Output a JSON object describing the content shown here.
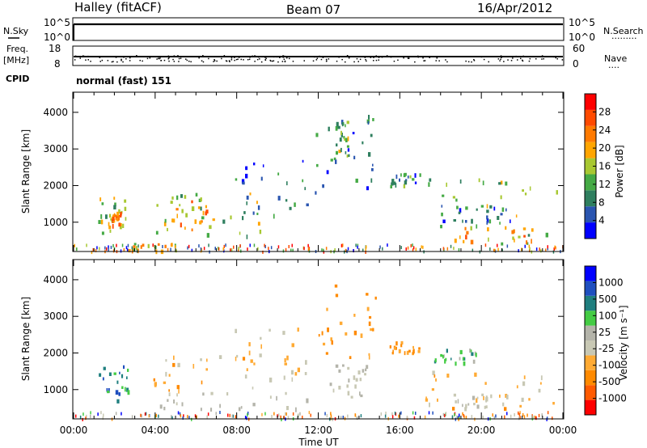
{
  "header": {
    "station": "Halley (fitACF)",
    "beam": "Beam 07",
    "date": "16/Apr/2012"
  },
  "noise_panel": {
    "left_label": "N.Sky",
    "right_label": "N.Search",
    "ticks": [
      "10^5",
      "10^0"
    ],
    "right_ticks": [
      "10^5",
      "10^0"
    ],
    "right_marker": "........."
  },
  "freq_panel": {
    "left_label": "Freq.",
    "left_unit": "[MHz]",
    "ticks": [
      "18",
      "8"
    ],
    "right_label": "Nave",
    "right_ticks": [
      "60",
      "0"
    ],
    "right_marker": "...."
  },
  "cpid": {
    "label": "CPID",
    "value": "normal (fast) 151"
  },
  "time_axis": {
    "label": "Time UT",
    "ticks": [
      "00:00",
      "04:00",
      "08:00",
      "12:00",
      "16:00",
      "20:00",
      "00:00"
    ]
  },
  "colors": {
    "power": [
      "#0000ff",
      "#2a55b0",
      "#2f7f5f",
      "#45aa45",
      "#a8c832",
      "#ffa500",
      "#ff7a00",
      "#ff4a00",
      "#ff0000"
    ],
    "velocity": [
      "#ff0000",
      "#ff5a00",
      "#ff8a00",
      "#ffaa33",
      "#c8c8b4",
      "#b4b4aa",
      "#44cc44",
      "#1f7f7f",
      "#1f4fbf",
      "#0000ff"
    ]
  },
  "chart_data": [
    {
      "type": "heatmap",
      "name": "power",
      "ylabel": "Slant Range [km]",
      "yticks": [
        1000,
        2000,
        3000,
        4000
      ],
      "ylim": [
        200,
        4550
      ],
      "xlim": [
        0,
        24
      ],
      "colorbar": {
        "label": "Power [dB]",
        "ticks": [
          "4",
          "8",
          "12",
          "16",
          "20",
          "24",
          "28"
        ],
        "range": [
          0,
          32
        ]
      },
      "regions": [
        {
          "t": [
            1.2,
            2.7
          ],
          "r": [
            700,
            1700
          ],
          "level": 14
        },
        {
          "t": [
            1.6,
            2.3
          ],
          "r": [
            900,
            1300
          ],
          "level": 22
        },
        {
          "t": [
            3.8,
            9.2
          ],
          "r": [
            650,
            1900
          ],
          "level": 14
        },
        {
          "t": [
            4.5,
            6.5
          ],
          "r": [
            800,
            1600
          ],
          "level": 21
        },
        {
          "t": [
            7.8,
            11.5
          ],
          "r": [
            1200,
            2700
          ],
          "level": 7
        },
        {
          "t": [
            11.8,
            14.8
          ],
          "r": [
            1800,
            4000
          ],
          "level": 8
        },
        {
          "t": [
            12.8,
            13.6
          ],
          "r": [
            2800,
            3800
          ],
          "level": 12
        },
        {
          "t": [
            15.5,
            17.0
          ],
          "r": [
            2000,
            2350
          ],
          "level": 9
        },
        {
          "t": [
            17.2,
            23.9
          ],
          "r": [
            350,
            2200
          ],
          "level": 13
        },
        {
          "t": [
            18.0,
            22.5
          ],
          "r": [
            500,
            1000
          ],
          "level": 21
        },
        {
          "t": [
            18.0,
            21.5
          ],
          "r": [
            1000,
            1500
          ],
          "level": 6
        },
        {
          "t": [
            2.5,
            5.0
          ],
          "r": [
            250,
            450
          ],
          "level": 18
        }
      ]
    },
    {
      "type": "heatmap",
      "name": "velocity",
      "ylabel": "Slant Range [km]",
      "yticks": [
        1000,
        2000,
        3000,
        4000
      ],
      "ylim": [
        200,
        4550
      ],
      "xlim": [
        0,
        24
      ],
      "colorbar": {
        "label": "Velocity [m s⁻¹]",
        "ticks": [
          "1000",
          "500",
          "100",
          "25",
          "-25",
          "-100",
          "-500",
          "-1000"
        ],
        "range": [
          -1000,
          1000
        ]
      },
      "regions": [
        {
          "t": [
            1.2,
            2.7
          ],
          "r": [
            700,
            1700
          ],
          "level": 500
        },
        {
          "t": [
            3.8,
            9.2
          ],
          "r": [
            1000,
            2000
          ],
          "level": -300
        },
        {
          "t": [
            3.2,
            11.5
          ],
          "r": [
            500,
            950
          ],
          "level": 0
        },
        {
          "t": [
            7.8,
            11.5
          ],
          "r": [
            1300,
            2700
          ],
          "level": -200
        },
        {
          "t": [
            11.8,
            14.8
          ],
          "r": [
            1900,
            4000
          ],
          "level": -400
        },
        {
          "t": [
            12.5,
            14.5
          ],
          "r": [
            800,
            1700
          ],
          "level": 0
        },
        {
          "t": [
            15.5,
            17.0
          ],
          "r": [
            2000,
            2350
          ],
          "level": -400
        },
        {
          "t": [
            17.2,
            23.9
          ],
          "r": [
            500,
            1600
          ],
          "level": -300
        },
        {
          "t": [
            18.5,
            22.0
          ],
          "r": [
            500,
            900
          ],
          "level": 0
        },
        {
          "t": [
            17.5,
            20.0
          ],
          "r": [
            1700,
            2200
          ],
          "level": 300
        }
      ]
    }
  ]
}
